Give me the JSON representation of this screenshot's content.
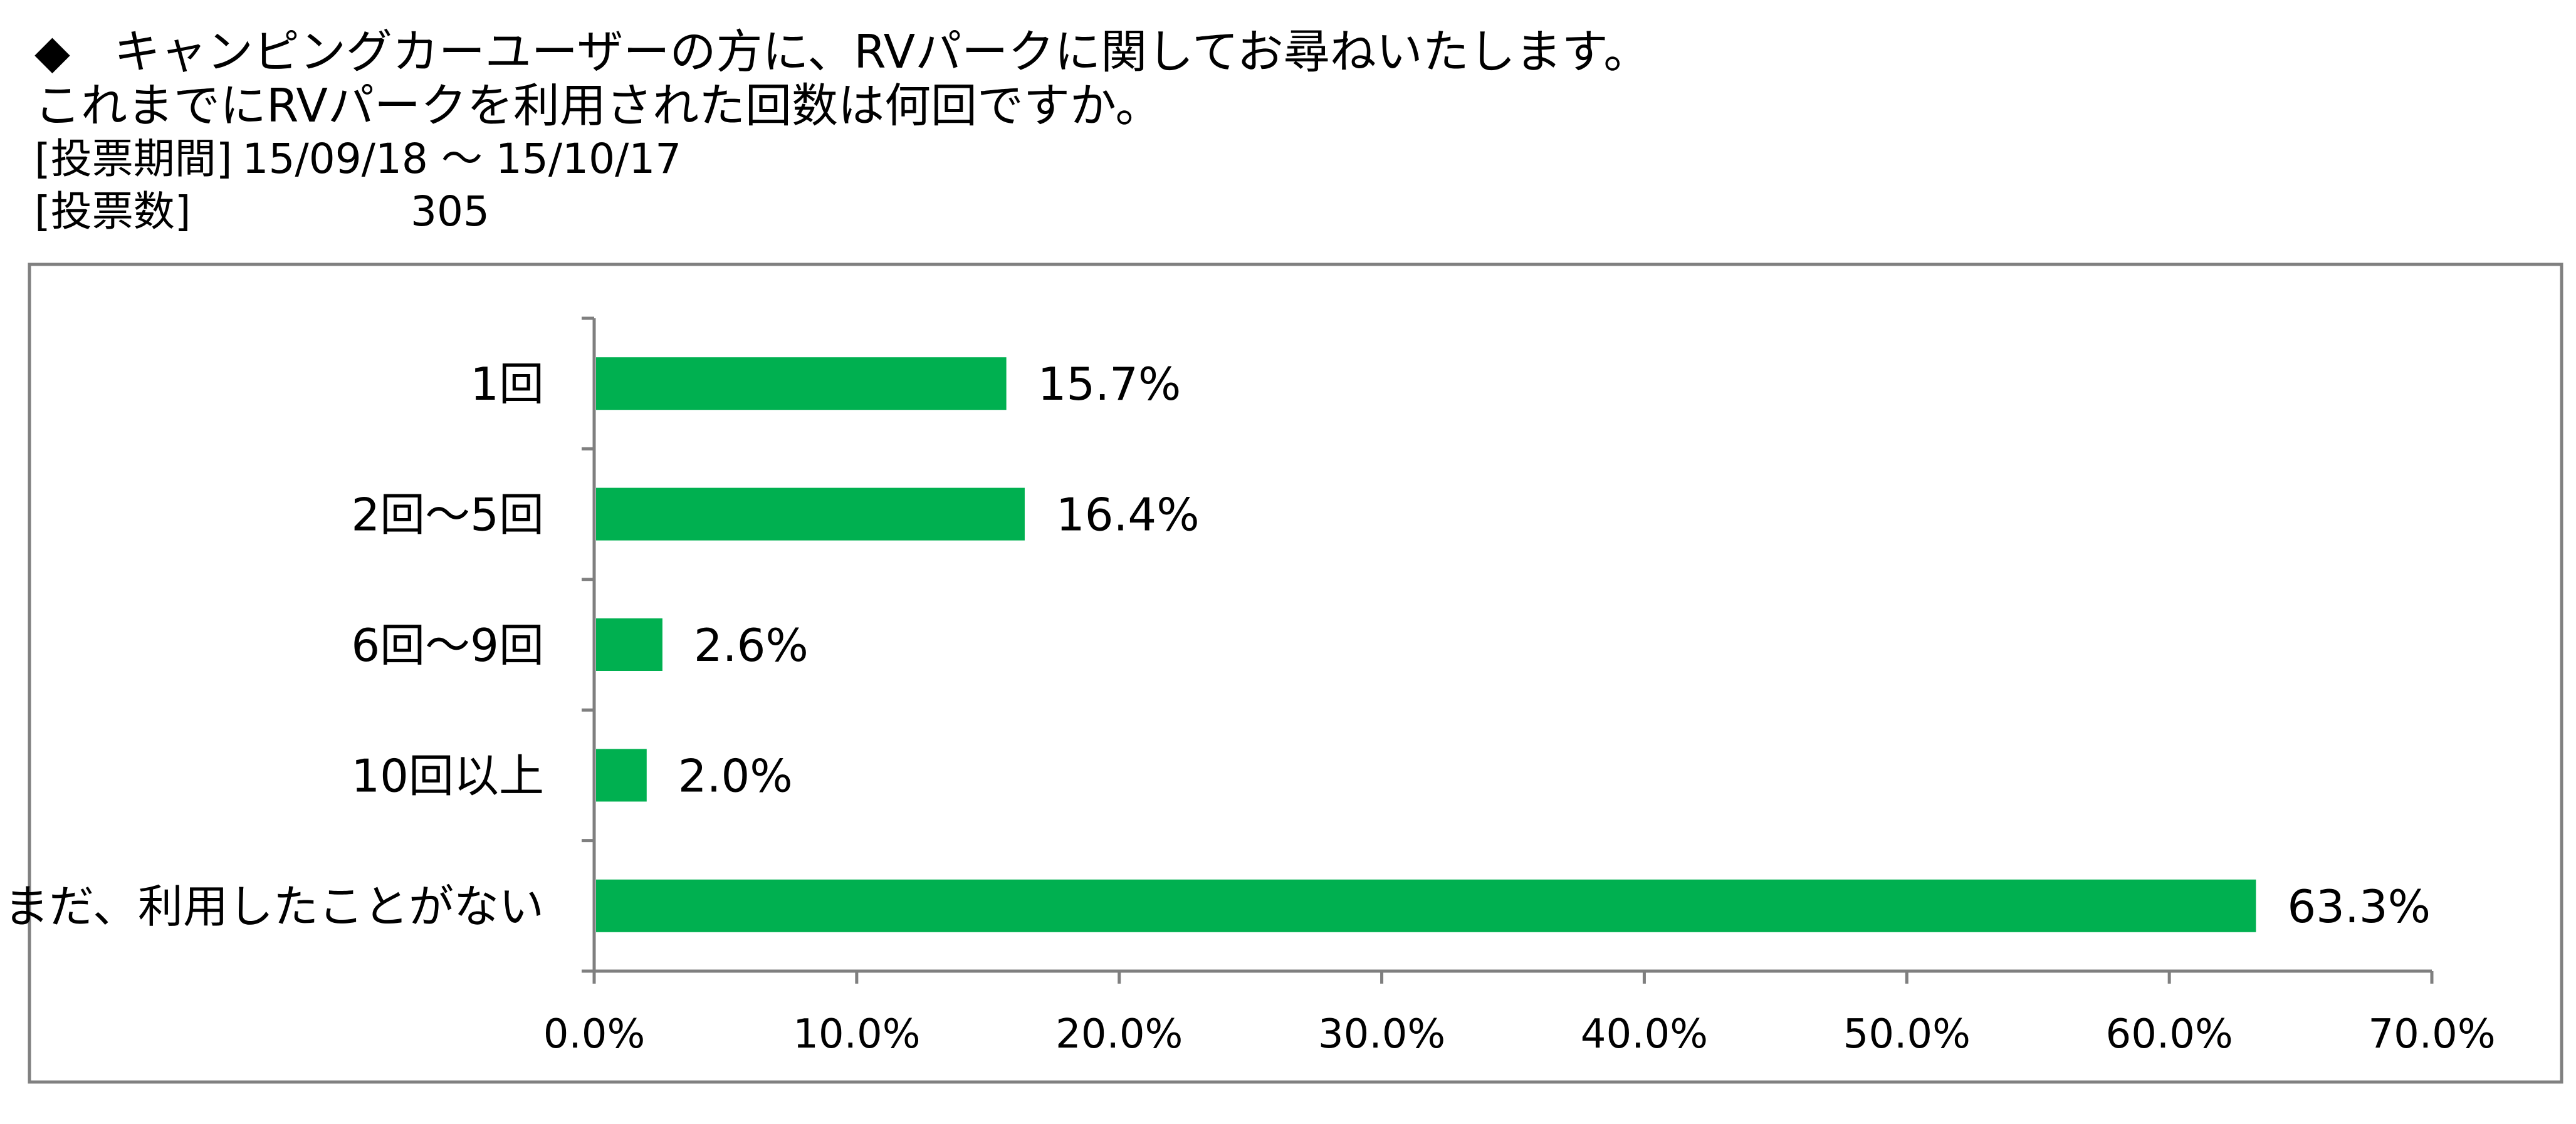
{
  "header": {
    "question_line1": "キャンピングカーユーザーの方に、RVパークに関してお尋ねいたします。",
    "question_line2": "これまでにRVパークを利用された回数は何回ですか。",
    "diamond": "◆",
    "period_label": "[投票期間]",
    "period_value": "15/09/18 ～ 15/10/17",
    "votes_label": "[投票数]",
    "votes_value": "305"
  },
  "colors": {
    "bar": "#00B050",
    "axis": "#7F7F7F",
    "border": "#808080"
  },
  "chart_data": {
    "type": "bar",
    "orientation": "horizontal",
    "categories": [
      "1回",
      "2回～5回",
      "6回～9回",
      "10回以上",
      "まだ、利用したことがない"
    ],
    "values": [
      15.7,
      16.4,
      2.6,
      2.0,
      63.3
    ],
    "value_labels": [
      "15.7%",
      "16.4%",
      "2.6%",
      "2.0%",
      "63.3%"
    ],
    "xlim": [
      0,
      70
    ],
    "xticks": [
      0,
      10,
      20,
      30,
      40,
      50,
      60,
      70
    ],
    "xtick_labels": [
      "0.0%",
      "10.0%",
      "20.0%",
      "30.0%",
      "40.0%",
      "50.0%",
      "60.0%",
      "70.0%"
    ],
    "grid": false,
    "legend": "none"
  }
}
